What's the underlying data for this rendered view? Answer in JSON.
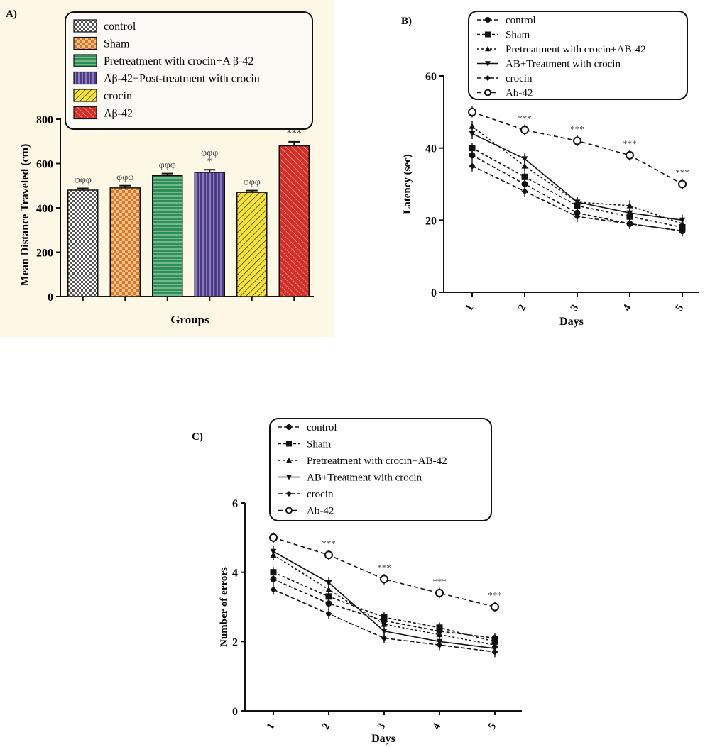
{
  "chart_data": [
    {
      "panel": "A)",
      "type": "bar",
      "ylabel": "Mean Distance Traveled (cm)",
      "xlabel": "Groups",
      "ylim": [
        0,
        800
      ],
      "yticks": [
        "0",
        "200",
        "400",
        "600",
        "800"
      ],
      "categories": [
        "control",
        "Sham",
        "Pretreatment with crocin+A β-42",
        "Aβ-42+Post-treatment with crocin",
        "crocin",
        "Aβ-42"
      ],
      "values": [
        480,
        490,
        545,
        560,
        470,
        680
      ],
      "errors": [
        8,
        10,
        10,
        12,
        8,
        18
      ],
      "annotations": [
        "φφφ",
        "φφφ",
        "φφφ",
        "φφφ\n*",
        "φφφ",
        "***"
      ],
      "colors": [
        "#cfcfcf",
        "#e8a35a",
        "#2f8f57",
        "#4d3a86",
        "#e8d62a",
        "#d0302a"
      ],
      "legend": "top",
      "grid": false
    },
    {
      "panel": "B)",
      "type": "line",
      "ylabel": "Latency (sec)",
      "xlabel": "Days",
      "ylim": [
        0,
        60
      ],
      "yticks": [
        "0",
        "20",
        "40",
        "60"
      ],
      "x": [
        "1",
        "2",
        "3",
        "4",
        "5"
      ],
      "series": [
        {
          "name": "control",
          "values": [
            38,
            30,
            22,
            19,
            17
          ]
        },
        {
          "name": "Sham",
          "values": [
            40,
            32,
            24,
            21,
            18
          ]
        },
        {
          "name": "Pretreatment with crocin+AB-42",
          "values": [
            46,
            35,
            25,
            24,
            19
          ]
        },
        {
          "name": "AB+Treatment with crocin",
          "values": [
            44,
            37,
            25,
            22,
            20
          ]
        },
        {
          "name": "crocin",
          "values": [
            35,
            28,
            21,
            19,
            17
          ]
        },
        {
          "name": "Ab-42",
          "values": [
            50,
            45,
            42,
            38,
            30
          ]
        }
      ],
      "annotations": [
        "",
        "***",
        "***",
        "***",
        "***"
      ],
      "legend": "top"
    },
    {
      "panel": "C)",
      "type": "line",
      "ylabel": "Number of errors",
      "xlabel": "Days",
      "ylim": [
        0,
        6
      ],
      "yticks": [
        "0",
        "2",
        "4",
        "6"
      ],
      "x": [
        "1",
        "2",
        "3",
        "4",
        "5"
      ],
      "series": [
        {
          "name": "control",
          "values": [
            3.8,
            3.1,
            2.6,
            2.3,
            2.1
          ]
        },
        {
          "name": "Sham",
          "values": [
            4.0,
            3.3,
            2.7,
            2.4,
            2.0
          ]
        },
        {
          "name": "Pretreatment with crocin+AB-42",
          "values": [
            4.5,
            3.5,
            2.5,
            2.2,
            1.9
          ]
        },
        {
          "name": "AB+Treatment with crocin",
          "values": [
            4.6,
            3.7,
            2.3,
            2.0,
            1.8
          ]
        },
        {
          "name": "crocin",
          "values": [
            3.5,
            2.8,
            2.1,
            1.9,
            1.7
          ]
        },
        {
          "name": "Ab-42",
          "values": [
            5.0,
            4.5,
            3.8,
            3.4,
            3.0
          ]
        }
      ],
      "annotations": [
        "",
        "***",
        "***",
        "***",
        "***"
      ],
      "legend": "top"
    }
  ]
}
